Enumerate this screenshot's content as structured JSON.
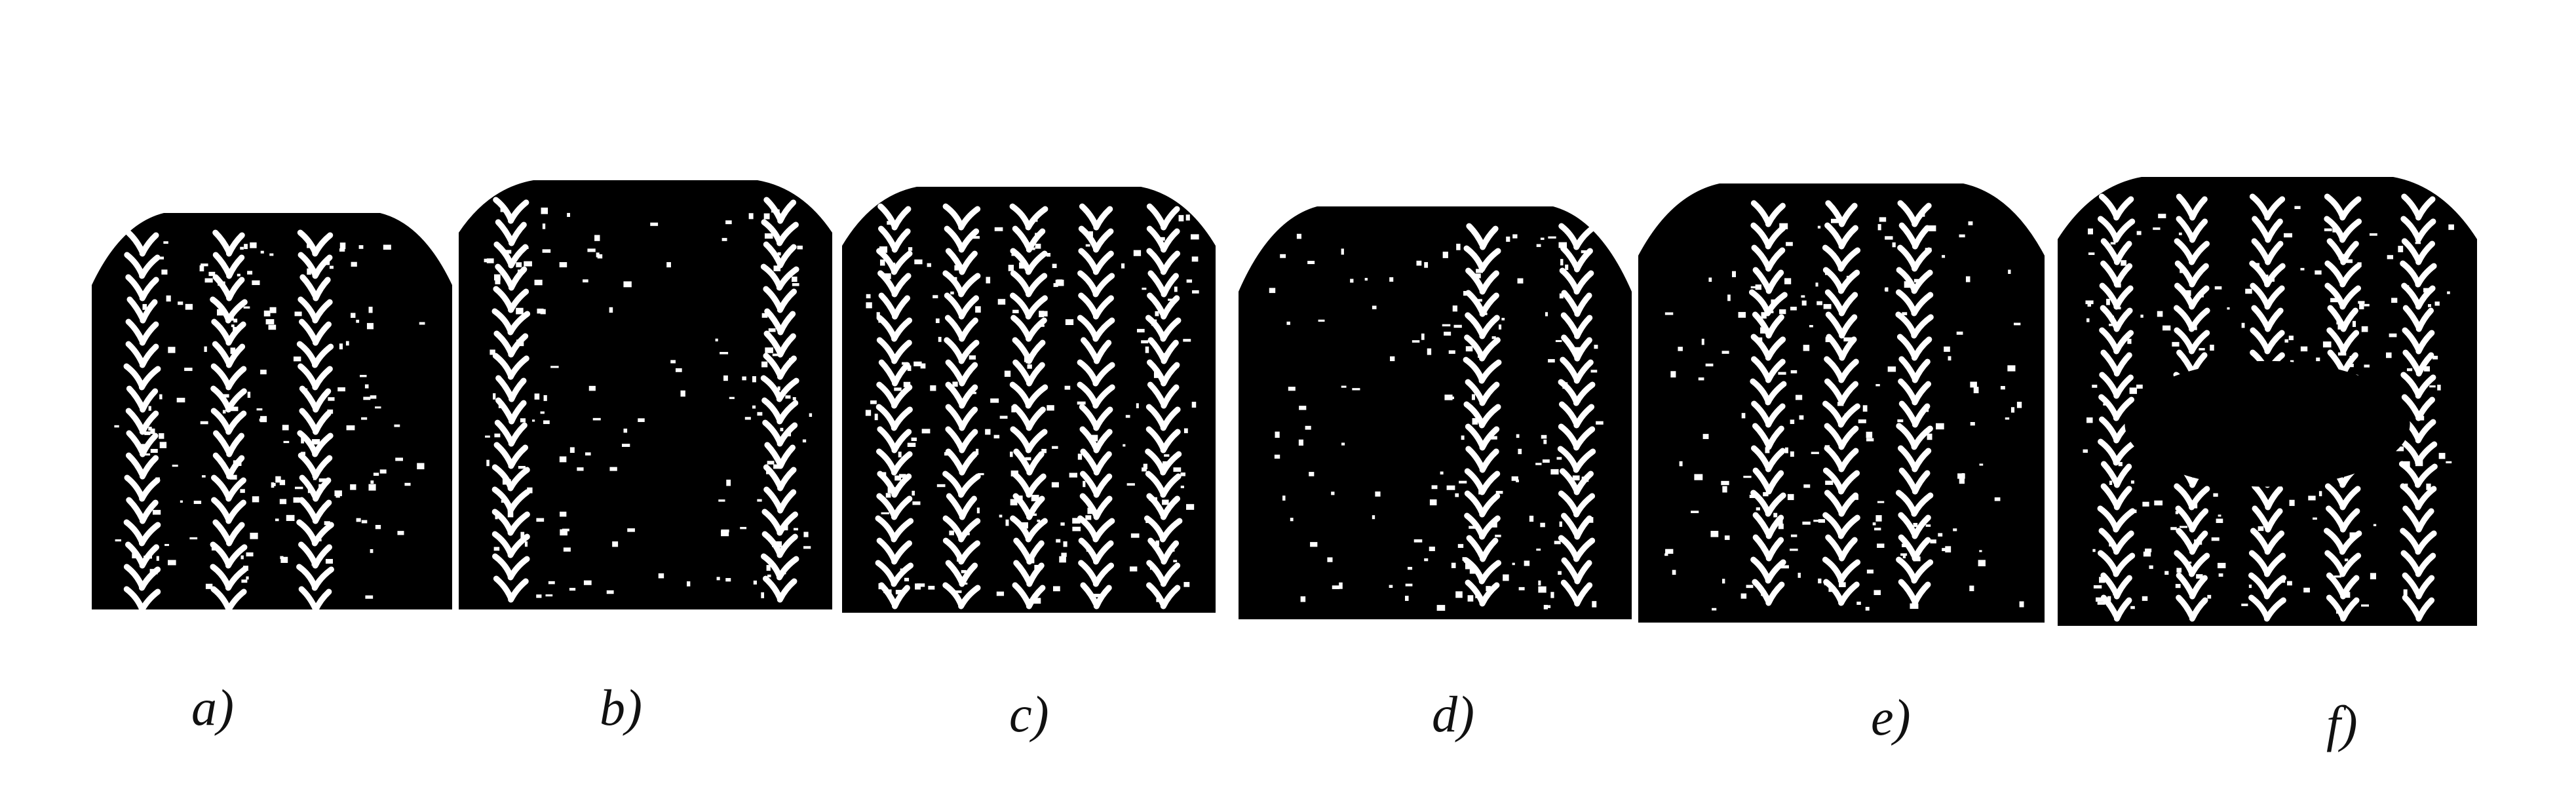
{
  "figure": {
    "panels": [
      {
        "caption": "a)",
        "wear": "shoulder-wear"
      },
      {
        "caption": "b)",
        "wear": "center-wear"
      },
      {
        "caption": "c)",
        "wear": "even-wear"
      },
      {
        "caption": "d)",
        "wear": "one-sided-wear"
      },
      {
        "caption": "e)",
        "wear": "cupping"
      },
      {
        "caption": "f)",
        "wear": "flat-spot"
      }
    ],
    "colors": {
      "tread": "#000000",
      "groove": "#ffffff",
      "caption": "#111111"
    }
  }
}
